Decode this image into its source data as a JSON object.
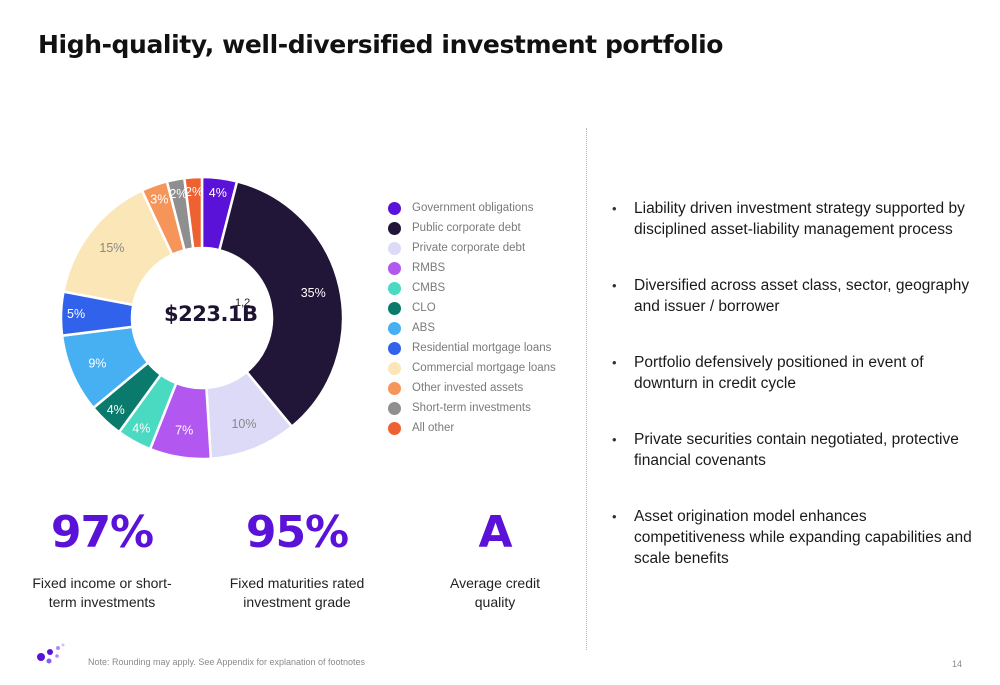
{
  "header": {
    "title": "High-quality, well-diversified investment portfolio"
  },
  "chart_data": {
    "type": "pie",
    "center_label": "$223.1B",
    "center_footnote": "1,2",
    "categories": [
      "Government obligations",
      "Public corporate debt",
      "Private corporate debt",
      "RMBS",
      "CMBS",
      "CLO",
      "ABS",
      "Residential mortgage loans",
      "Commercial mortgage loans",
      "Other invested assets",
      "Short-term investments",
      "All other"
    ],
    "values": [
      4,
      35,
      10,
      7,
      4,
      4,
      9,
      5,
      15,
      3,
      2,
      2
    ],
    "labels": [
      "4%",
      "35%",
      "10%",
      "7%",
      "4%",
      "4%",
      "9%",
      "5%",
      "15%",
      "3%",
      "2%",
      "2%"
    ],
    "colors": [
      "#5b12d8",
      "#211538",
      "#dcdaf7",
      "#b258f0",
      "#4ad9c1",
      "#0a7a6c",
      "#47b0f3",
      "#3162ec",
      "#fbe6b8",
      "#f6955a",
      "#8f8f8f",
      "#ee6232"
    ],
    "label_colors": [
      "#ffffff",
      "#ffffff",
      "#888888",
      "#ffffff",
      "#ffffff",
      "#ffffff",
      "#ffffff",
      "#ffffff",
      "#888888",
      "#ffffff",
      "#ffffff",
      "#ffffff"
    ],
    "legend_position": "right"
  },
  "stats": [
    {
      "value": "97%",
      "caption": "Fixed income or short-\nterm investments"
    },
    {
      "value": "95%",
      "caption": "Fixed maturities rated\ninvestment grade"
    },
    {
      "value": "A",
      "caption": "Average credit\nquality"
    }
  ],
  "bullets": [
    "Liability driven investment strategy supported by disciplined asset-liability management process",
    "Diversified across asset class, sector, geography and issuer / borrower",
    "Portfolio defensively positioned in event of downturn in credit cycle",
    "Private securities contain negotiated, protective financial covenants",
    "Asset origination model enhances competitiveness while expanding capabilities and scale benefits"
  ],
  "bullet_glyph": "•",
  "footer": {
    "note": "Note: Rounding may apply. See Appendix for explanation of footnotes",
    "page": "14"
  },
  "logo": {
    "icon": "dots-logo-icon",
    "color": "#5b12d8"
  }
}
